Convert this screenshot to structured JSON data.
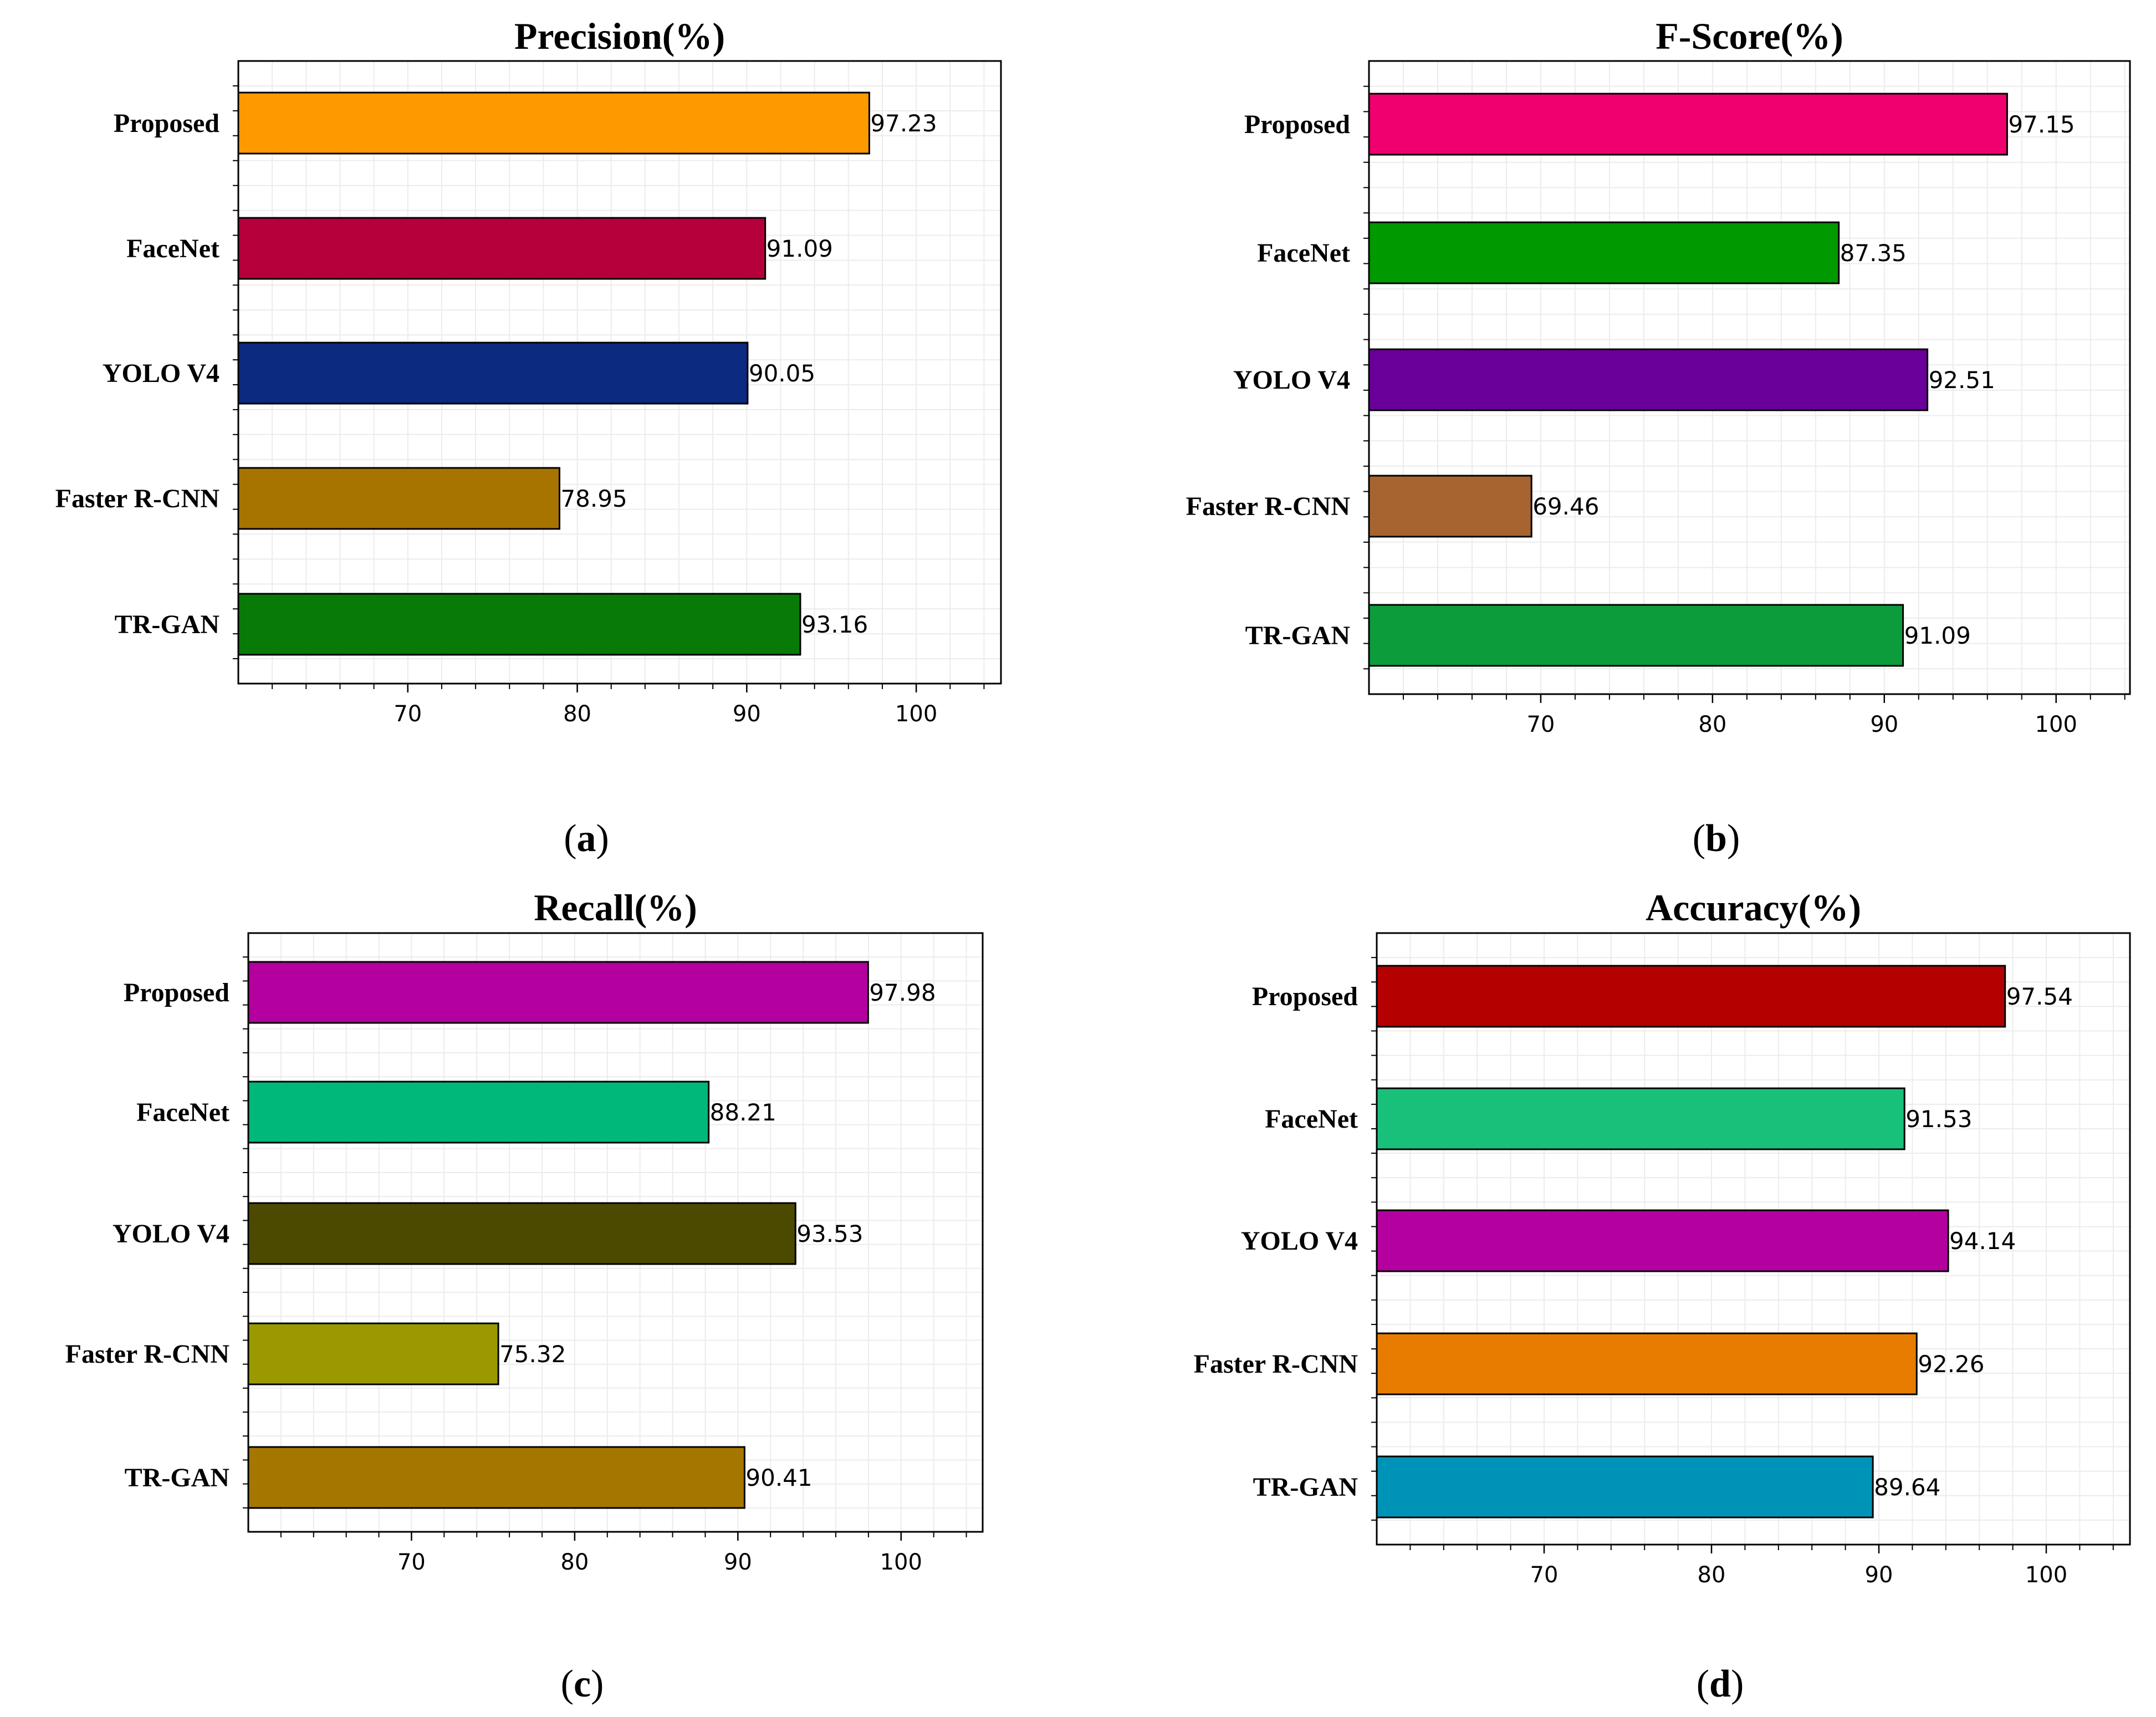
{
  "chart_data": [
    {
      "type": "bar",
      "orientation": "horizontal",
      "title": "Precision(%)",
      "subfigure_label": "a",
      "categories": [
        "Proposed",
        "FaceNet",
        "YOLO V4",
        "Faster R-CNN",
        "TR-GAN"
      ],
      "values": [
        97.23,
        91.09,
        90.05,
        78.95,
        93.16
      ],
      "value_labels": [
        "97.23",
        "91.09",
        "90.05",
        "78.95",
        "93.16"
      ],
      "colors": [
        "#ff9900",
        "#b5003c",
        "#0b2a80",
        "#a87400",
        "#087a08"
      ],
      "xticks": [
        70,
        80,
        90,
        100
      ],
      "xlim": [
        60,
        105
      ],
      "grid": true
    },
    {
      "type": "bar",
      "orientation": "horizontal",
      "title": "F-Score(%)",
      "subfigure_label": "b",
      "categories": [
        "Proposed",
        "FaceNet",
        "YOLO V4",
        "Faster R-CNN",
        "TR-GAN"
      ],
      "values": [
        97.15,
        87.35,
        92.51,
        69.46,
        91.09
      ],
      "value_labels": [
        "97.15",
        "87.35",
        "92.51",
        "69.46",
        "91.09"
      ],
      "colors": [
        "#f0006e",
        "#009900",
        "#6a009a",
        "#a86430",
        "#0c9c3c"
      ],
      "xticks": [
        70,
        80,
        90,
        100
      ],
      "xlim": [
        60,
        104.3
      ],
      "grid": true
    },
    {
      "type": "bar",
      "orientation": "horizontal",
      "title": "Recall(%)",
      "subfigure_label": "c",
      "categories": [
        "Proposed",
        "FaceNet",
        "YOLO V4",
        "Faster R-CNN",
        "TR-GAN"
      ],
      "values": [
        97.98,
        88.21,
        93.53,
        75.32,
        90.41
      ],
      "value_labels": [
        "97.98",
        "88.21",
        "93.53",
        "75.32",
        "90.41"
      ],
      "colors": [
        "#b3009e",
        "#00b87a",
        "#4b4a00",
        "#9a9a00",
        "#a57600"
      ],
      "xticks": [
        70,
        80,
        90,
        100
      ],
      "xlim": [
        60,
        105
      ],
      "grid": true
    },
    {
      "type": "bar",
      "orientation": "horizontal",
      "title": "Accuracy(%)",
      "subfigure_label": "d",
      "categories": [
        "Proposed",
        "FaceNet",
        "YOLO V4",
        "Faster R-CNN",
        "TR-GAN"
      ],
      "values": [
        97.54,
        91.53,
        94.14,
        92.26,
        89.64
      ],
      "value_labels": [
        "97.54",
        "91.53",
        "94.14",
        "92.26",
        "89.64"
      ],
      "colors": [
        "#b50000",
        "#19c07a",
        "#b3009e",
        "#e87c00",
        "#0093b8"
      ],
      "xticks": [
        70,
        80,
        90,
        100
      ],
      "xlim": [
        60,
        105
      ],
      "grid": true
    }
  ]
}
